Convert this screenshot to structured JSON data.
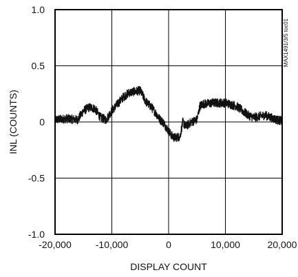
{
  "chart_data": {
    "type": "line",
    "title": "",
    "xlabel": "DISPLAY COUNT",
    "ylabel": "INL (COUNTS)",
    "xlim": [
      -20000,
      20000
    ],
    "ylim": [
      -1.0,
      1.0
    ],
    "grid": true,
    "x_tick_labels": [
      {
        "value": -20000,
        "label": "-20,000"
      },
      {
        "value": -10000,
        "label": "-10,000"
      },
      {
        "value": 0,
        "label": "0"
      },
      {
        "value": 10000,
        "label": "10,000"
      },
      {
        "value": 20000,
        "label": "20,000"
      }
    ],
    "y_tick_labels": [
      {
        "value": 1.0,
        "label": "1.0"
      },
      {
        "value": 0.5,
        "label": "0.5"
      },
      {
        "value": 0,
        "label": "0"
      },
      {
        "value": -0.5,
        "label": "-0.5"
      },
      {
        "value": -1.0,
        "label": "-1.0"
      }
    ],
    "series": [
      {
        "color": "#111111",
        "noise_band": 0.04,
        "x": [
          -20000,
          -18000,
          -16000,
          -15000,
          -14000,
          -13000,
          -12000,
          -11000,
          -10000,
          -9000,
          -8000,
          -7000,
          -6000,
          -5000,
          -4000,
          -3000,
          -2000,
          -1500,
          -1000,
          0,
          500,
          1000,
          2000,
          2500,
          3000,
          4000,
          5000,
          5500,
          6000,
          8000,
          10000,
          12000,
          13000,
          14000,
          15000,
          17000,
          19000,
          20000
        ],
        "y": [
          0.02,
          0.03,
          0.02,
          0.1,
          0.13,
          0.12,
          0.04,
          0.02,
          0.1,
          0.16,
          0.22,
          0.26,
          0.27,
          0.28,
          0.18,
          0.13,
          0.06,
          0.02,
          0.0,
          -0.08,
          -0.12,
          -0.14,
          -0.13,
          0.0,
          -0.04,
          0.0,
          0.02,
          0.14,
          0.16,
          0.17,
          0.17,
          0.14,
          0.1,
          0.06,
          0.04,
          0.06,
          0.02,
          0.01
        ]
      }
    ]
  },
  "side_code": "MAX1491/3/5 toc01"
}
